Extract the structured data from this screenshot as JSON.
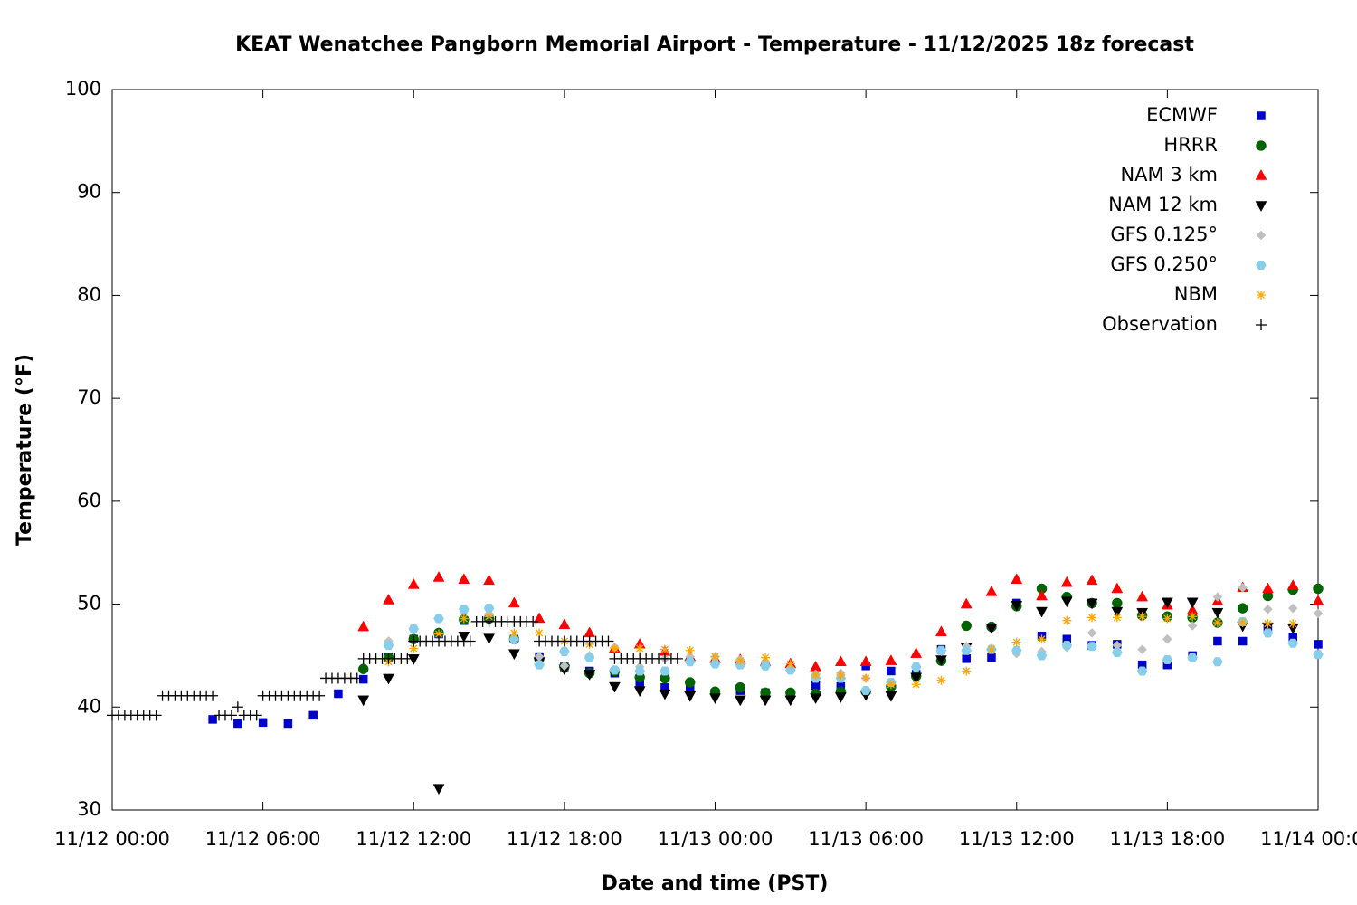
{
  "chart_data": {
    "type": "scatter",
    "title": "KEAT Wenatchee Pangborn Memorial Airport - Temperature - 11/12/2025 18z forecast",
    "x_label": "Date and time (PST)",
    "y_label": "Temperature (°F)",
    "xlim": [
      "11/12 00:00",
      "11/14 00:00"
    ],
    "xticks": [
      "11/12 00:00",
      "11/12 06:00",
      "11/12 12:00",
      "11/12 18:00",
      "11/13 00:00",
      "11/13 06:00",
      "11/13 12:00",
      "11/13 18:00",
      "11/14 00:00"
    ],
    "ylim": [
      30,
      100
    ],
    "yticks": [
      30,
      40,
      50,
      60,
      70,
      80,
      90,
      100
    ],
    "legend": "top-right",
    "grid": false,
    "x": [
      "11/12 04:00",
      "11/12 05:00",
      "11/12 06:00",
      "11/12 07:00",
      "11/12 08:00",
      "11/12 09:00",
      "11/12 10:00",
      "11/12 11:00",
      "11/12 12:00",
      "11/12 13:00",
      "11/12 14:00",
      "11/12 15:00",
      "11/12 16:00",
      "11/12 17:00",
      "11/12 18:00",
      "11/12 19:00",
      "11/12 20:00",
      "11/12 21:00",
      "11/12 22:00",
      "11/12 23:00",
      "11/13 00:00",
      "11/13 01:00",
      "11/13 02:00",
      "11/13 03:00",
      "11/13 04:00",
      "11/13 05:00",
      "11/13 06:00",
      "11/13 07:00",
      "11/13 08:00",
      "11/13 09:00",
      "11/13 10:00",
      "11/13 11:00",
      "11/13 12:00",
      "11/13 13:00",
      "11/13 14:00",
      "11/13 15:00",
      "11/13 16:00",
      "11/13 17:00",
      "11/13 18:00",
      "11/13 19:00",
      "11/13 20:00",
      "11/13 21:00",
      "11/13 22:00",
      "11/13 23:00",
      "11/14 00:00"
    ],
    "series": [
      {
        "name": "ECMWF",
        "color": "#0000cc",
        "marker": "square",
        "values": [
          38.8,
          38.4,
          38.5,
          38.4,
          39.2,
          41.3,
          42.7,
          44.8,
          46.6,
          47.1,
          48.4,
          48.7,
          46.6,
          44.9,
          43.9,
          43.5,
          43.3,
          42.3,
          41.9,
          41.7,
          41.4,
          41.6,
          41.4,
          41.3,
          42.1,
          42.0,
          44.0,
          43.5,
          43.2,
          45.6,
          44.7,
          44.8,
          50.1,
          46.9,
          46.6,
          46.0,
          46.1,
          44.1,
          44.1,
          45.0,
          46.4,
          46.4,
          47.5,
          46.8,
          46.1
        ]
      },
      {
        "name": "HRRR",
        "color": "#006400",
        "marker": "circle",
        "values": [
          null,
          null,
          null,
          null,
          null,
          null,
          43.7,
          44.8,
          46.6,
          47.2,
          48.5,
          48.6,
          46.6,
          44.7,
          43.9,
          43.3,
          43.5,
          42.9,
          42.8,
          42.4,
          41.5,
          41.9,
          41.4,
          41.4,
          41.3,
          41.5,
          41.5,
          42.0,
          43.0,
          44.5,
          47.9,
          47.8,
          49.8,
          51.5,
          50.7,
          50.1,
          50.1,
          48.9,
          48.8,
          48.7,
          48.2,
          49.6,
          50.8,
          51.4,
          51.5
        ]
      },
      {
        "name": "NAM 3 km",
        "color": "#ff0000",
        "marker": "triangle",
        "values": [
          null,
          null,
          null,
          null,
          null,
          null,
          47.8,
          50.4,
          51.9,
          52.6,
          52.4,
          52.3,
          50.1,
          48.6,
          48.0,
          47.2,
          45.7,
          46.1,
          45.4,
          44.9,
          44.7,
          44.6,
          44.4,
          44.2,
          43.9,
          44.4,
          44.4,
          44.5,
          45.2,
          47.3,
          50.0,
          51.2,
          52.4,
          50.8,
          52.1,
          52.3,
          51.5,
          50.7,
          49.9,
          49.4,
          50.3,
          51.6,
          51.5,
          51.8,
          50.3
        ]
      },
      {
        "name": "NAM 12 km",
        "color": "#000000",
        "marker": "triangle-down",
        "values": [
          null,
          null,
          null,
          null,
          null,
          null,
          40.7,
          42.8,
          44.7,
          32.1,
          46.9,
          46.7,
          45.2,
          44.4,
          43.7,
          43.2,
          42.0,
          41.6,
          41.3,
          41.1,
          40.9,
          40.7,
          40.7,
          40.7,
          40.9,
          41.0,
          41.2,
          41.1,
          42.9,
          44.6,
          45.8,
          47.7,
          49.9,
          49.3,
          50.3,
          50.1,
          49.3,
          49.2,
          50.2,
          50.2,
          49.2,
          47.9,
          47.8,
          47.7,
          null
        ]
      },
      {
        "name": "GFS 0.125°",
        "color": "#c0c0c0",
        "marker": "diamond",
        "values": [
          null,
          null,
          null,
          null,
          null,
          null,
          null,
          46.4,
          47.5,
          48.6,
          49.3,
          49.0,
          46.5,
          44.9,
          44.0,
          45.0,
          45.8,
          43.9,
          44.7,
          44.9,
          44.9,
          44.6,
          44.4,
          43.8,
          43.2,
          43.3,
          42.8,
          42.4,
          43.9,
          45.4,
          45.9,
          45.7,
          45.2,
          45.4,
          45.8,
          47.2,
          46.0,
          45.6,
          46.6,
          47.9,
          50.7,
          51.6,
          49.5,
          49.6,
          49.1
        ]
      },
      {
        "name": "GFS 0.250°",
        "color": "#87ceeb",
        "marker": "hexagon",
        "values": [
          null,
          null,
          null,
          null,
          null,
          null,
          null,
          46.0,
          47.6,
          48.6,
          49.5,
          49.6,
          46.6,
          44.1,
          45.4,
          44.8,
          43.6,
          43.5,
          43.5,
          44.4,
          44.2,
          44.1,
          44.0,
          43.6,
          42.8,
          42.8,
          41.6,
          42.4,
          43.9,
          45.5,
          45.5,
          45.6,
          45.5,
          45.0,
          46.0,
          45.9,
          45.3,
          43.5,
          44.6,
          44.8,
          44.4,
          48.3,
          47.2,
          46.2,
          45.1
        ]
      },
      {
        "name": "NBM",
        "color": "#ffa500",
        "marker": "asterisk",
        "values": [
          null,
          null,
          null,
          null,
          null,
          null,
          null,
          44.4,
          45.7,
          47.1,
          48.6,
          48.8,
          47.2,
          47.2,
          46.4,
          46.1,
          45.7,
          45.7,
          45.6,
          45.5,
          44.9,
          44.5,
          44.8,
          44.2,
          43.1,
          43.1,
          42.8,
          42.2,
          42.2,
          42.6,
          43.5,
          45.6,
          46.3,
          46.6,
          48.4,
          48.7,
          48.7,
          48.8,
          48.6,
          48.8,
          48.2,
          48.2,
          48.1,
          48.1,
          null
        ]
      },
      {
        "name": "Observation",
        "color": "#000000",
        "marker": "plus",
        "x": [
          "11/12 00:00",
          "11/12 00:15",
          "11/12 00:30",
          "11/12 00:45",
          "11/12 01:00",
          "11/12 01:15",
          "11/12 01:30",
          "11/12 01:45",
          "11/12 02:00",
          "11/12 02:15",
          "11/12 02:30",
          "11/12 02:45",
          "11/12 03:00",
          "11/12 03:15",
          "11/12 03:30",
          "11/12 03:45",
          "11/12 04:00",
          "11/12 04:15",
          "11/12 04:30",
          "11/12 04:45",
          "11/12 05:00",
          "11/12 05:15",
          "11/12 05:30",
          "11/12 05:45",
          "11/12 06:00",
          "11/12 06:15",
          "11/12 06:30",
          "11/12 06:45",
          "11/12 07:00",
          "11/12 07:15",
          "11/12 07:30",
          "11/12 07:45",
          "11/12 08:00",
          "11/12 08:15",
          "11/12 08:30",
          "11/12 08:45",
          "11/12 09:00",
          "11/12 09:15",
          "11/12 09:30",
          "11/12 09:45",
          "11/12 10:00",
          "11/12 10:15",
          "11/12 10:30",
          "11/12 10:45",
          "11/12 11:00",
          "11/12 11:15",
          "11/12 11:30",
          "11/12 11:45",
          "11/12 12:00",
          "11/12 12:15",
          "11/12 12:30",
          "11/12 12:45",
          "11/12 13:00",
          "11/12 13:15",
          "11/12 13:30",
          "11/12 13:45",
          "11/12 14:00",
          "11/12 14:15",
          "11/12 14:30",
          "11/12 14:45",
          "11/12 15:00",
          "11/12 15:15",
          "11/12 15:30",
          "11/12 15:45",
          "11/12 16:00",
          "11/12 16:15",
          "11/12 16:30",
          "11/12 16:45",
          "11/12 17:00",
          "11/12 17:15",
          "11/12 17:30",
          "11/12 17:45",
          "11/12 18:00",
          "11/12 18:15",
          "11/12 18:30",
          "11/12 18:45",
          "11/12 19:00",
          "11/12 19:15",
          "11/12 19:30",
          "11/12 19:45",
          "11/12 20:00",
          "11/12 20:15",
          "11/12 20:30",
          "11/12 20:45",
          "11/12 21:00",
          "11/12 21:15",
          "11/12 21:30",
          "11/12 21:45",
          "11/12 22:00",
          "11/12 22:15",
          "11/12 22:30"
        ],
        "values": [
          39.2,
          39.2,
          39.2,
          39.2,
          39.2,
          39.2,
          39.2,
          39.2,
          41.1,
          41.1,
          41.1,
          41.1,
          41.1,
          41.1,
          41.1,
          41.1,
          41.1,
          39.2,
          39.2,
          39.2,
          40.0,
          39.2,
          39.2,
          39.2,
          41.1,
          41.1,
          41.1,
          41.1,
          41.1,
          41.1,
          41.1,
          41.1,
          41.1,
          41.1,
          42.8,
          42.8,
          42.8,
          42.8,
          42.8,
          42.8,
          44.7,
          44.7,
          44.7,
          44.7,
          44.7,
          44.7,
          44.7,
          44.7,
          46.4,
          46.4,
          46.4,
          46.4,
          46.4,
          46.4,
          46.4,
          46.4,
          46.4,
          46.4,
          48.3,
          48.3,
          48.3,
          48.3,
          48.3,
          48.3,
          48.3,
          48.3,
          48.3,
          48.3,
          46.4,
          46.4,
          46.4,
          46.4,
          46.4,
          46.4,
          46.4,
          46.4,
          46.4,
          46.4,
          46.4,
          46.4,
          44.7,
          44.7,
          44.7,
          44.7,
          44.7,
          44.7,
          44.7,
          44.7,
          44.7,
          44.7,
          44.7
        ]
      }
    ]
  }
}
